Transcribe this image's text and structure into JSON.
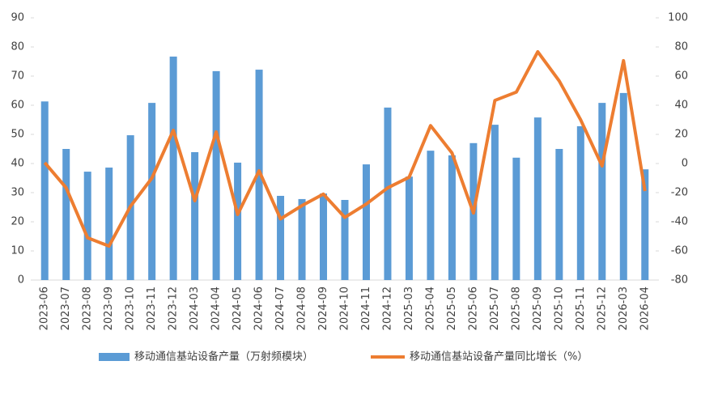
{
  "chart_data": {
    "type": "bar-line",
    "categories": [
      "2023-06",
      "2023-07",
      "2023-08",
      "2023-09",
      "2023-10",
      "2023-11",
      "2023-12",
      "2024-03",
      "2024-04",
      "2024-05",
      "2024-06",
      "2024-07",
      "2024-08",
      "2024-09",
      "2024-10",
      "2024-11",
      "2024-12",
      "2025-03",
      "2025-04",
      "2025-05",
      "2025-06",
      "2025-07",
      "2025-08",
      "2025-09",
      "2025-10",
      "2025-11",
      "2025-12",
      "2026-03",
      "2026-04"
    ],
    "series": [
      {
        "name": "移动通信基站设备产量（万射频模块）",
        "color": "#5b9bd5",
        "axis": "y",
        "values": [
          61.3,
          45,
          37.2,
          38.6,
          49.7,
          60.8,
          76.7,
          43.9,
          71.7,
          40.3,
          72.2,
          28.9,
          27.8,
          29.7,
          27.5,
          39.7,
          59.2,
          35.5,
          44.4,
          42.8,
          47,
          53.3,
          42,
          55.8,
          45,
          52.8,
          60.8,
          64.2,
          38
        ]
      },
      {
        "name": "移动通信基站设备产量同比增长（%）",
        "color": "#ed7d31",
        "axis": "y2",
        "values": [
          0.6,
          -16.7,
          -51,
          -56.7,
          -29.4,
          -10,
          22.8,
          -25.6,
          21.7,
          -35,
          -5,
          -38,
          -28.9,
          -21,
          -37,
          -27.8,
          -16.7,
          -9.4,
          26,
          7.2,
          -34,
          43.3,
          49,
          76.7,
          56.7,
          30,
          -1.7,
          70.6,
          -18.9
        ]
      }
    ],
    "ylim": [
      0,
      90
    ],
    "yticks": [
      0,
      10,
      20,
      30,
      40,
      50,
      60,
      70,
      80,
      90
    ],
    "y2lim": [
      -80,
      100
    ],
    "y2ticks": [
      -80,
      -60,
      -40,
      -20,
      0,
      20,
      40,
      60,
      80,
      100
    ]
  }
}
